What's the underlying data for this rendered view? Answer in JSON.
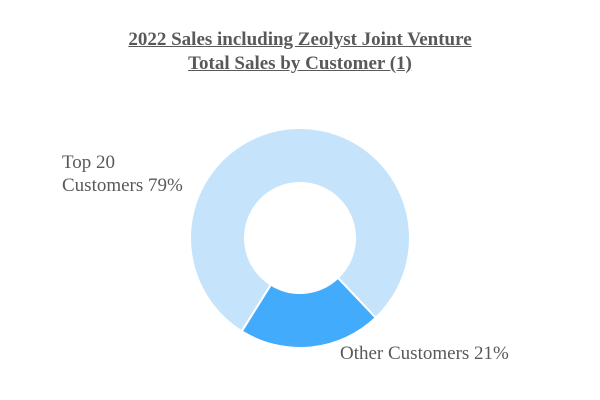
{
  "chart_data": {
    "type": "pie",
    "title_line1": "2022 Sales including Zeolyst Joint Venture",
    "title_line2": "Total Sales by Customer (1)",
    "slices": [
      {
        "label_line1": "Top 20",
        "label_line2": "Customers 79%",
        "value": 79,
        "color": "#c5e4fb"
      },
      {
        "label": "Other Customers 21%",
        "value": 21,
        "color": "#42abfb"
      }
    ],
    "donut": true
  }
}
